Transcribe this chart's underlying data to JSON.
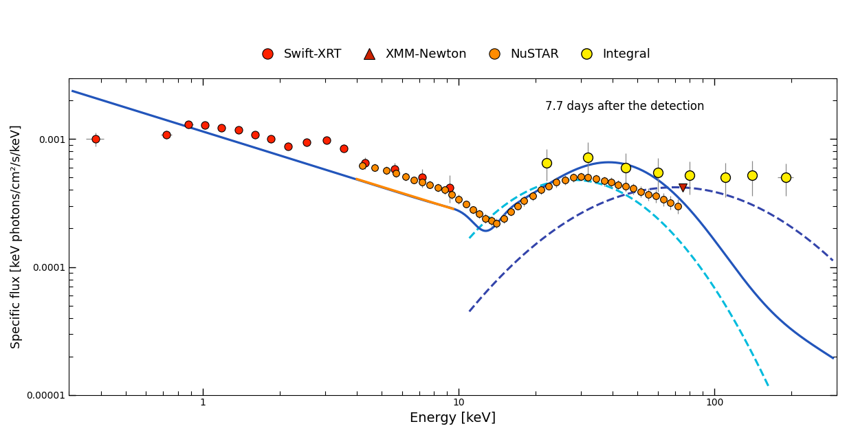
{
  "xlabel": "Energy [keV]",
  "ylabel": "Specific flux [keV photons/cm²/s/keV]",
  "annotation": "7.7 days after the detection",
  "xlim": [
    0.3,
    300
  ],
  "ylim": [
    1e-05,
    0.003
  ],
  "background_color": "#ffffff",
  "solid_line_color": "#2255bb",
  "orange_line_color": "#ff8800",
  "dashed_cyan_color": "#00bbdd",
  "dashed_navy_color": "#3344aa",
  "swift_color": "#ff2200",
  "nustar_color": "#ff8c00",
  "integral_color": "#ffee00",
  "xmm_color": "#cc2200",
  "swift_xrt_data": [
    [
      0.38,
      0.001,
      0.08,
      0.00012
    ],
    [
      0.72,
      0.00108,
      0.05,
      8e-05
    ],
    [
      0.88,
      0.0013,
      0.04,
      9e-05
    ],
    [
      1.02,
      0.00128,
      0.025,
      8e-05
    ],
    [
      1.18,
      0.00122,
      0.025,
      7e-05
    ],
    [
      1.38,
      0.00118,
      0.025,
      7e-05
    ],
    [
      1.6,
      0.00108,
      0.025,
      7e-05
    ],
    [
      1.85,
      0.001,
      0.025,
      7e-05
    ],
    [
      2.15,
      0.00088,
      0.025,
      6e-05
    ],
    [
      2.55,
      0.00094,
      0.025,
      6e-05
    ],
    [
      3.05,
      0.00098,
      0.025,
      6e-05
    ],
    [
      3.55,
      0.00085,
      0.025,
      6e-05
    ],
    [
      4.3,
      0.00065,
      0.025,
      7e-05
    ],
    [
      5.6,
      0.00058,
      0.025,
      7e-05
    ],
    [
      7.2,
      0.0005,
      0.03,
      8e-05
    ],
    [
      9.2,
      0.00042,
      0.04,
      0.0001
    ]
  ],
  "nustar_data": [
    [
      4.2,
      0.00062,
      0.015,
      4e-05
    ],
    [
      4.7,
      0.0006,
      0.015,
      4e-05
    ],
    [
      5.2,
      0.00057,
      0.015,
      4e-05
    ],
    [
      5.7,
      0.00054,
      0.015,
      4e-05
    ],
    [
      6.2,
      0.00051,
      0.015,
      4e-05
    ],
    [
      6.7,
      0.00048,
      0.015,
      3e-05
    ],
    [
      7.2,
      0.00046,
      0.015,
      3e-05
    ],
    [
      7.7,
      0.00044,
      0.015,
      3e-05
    ],
    [
      8.3,
      0.00042,
      0.015,
      3e-05
    ],
    [
      8.8,
      0.0004,
      0.015,
      3e-05
    ],
    [
      9.4,
      0.00037,
      0.015,
      3e-05
    ],
    [
      10.0,
      0.00034,
      0.015,
      3e-05
    ],
    [
      10.7,
      0.00031,
      0.015,
      2e-05
    ],
    [
      11.4,
      0.00028,
      0.015,
      2e-05
    ],
    [
      12.0,
      0.00026,
      0.015,
      2e-05
    ],
    [
      12.7,
      0.00024,
      0.015,
      2e-05
    ],
    [
      13.4,
      0.00023,
      0.015,
      2e-05
    ],
    [
      14.0,
      0.00022,
      0.015,
      2e-05
    ],
    [
      15.0,
      0.00024,
      0.015,
      2e-05
    ],
    [
      16.0,
      0.00027,
      0.015,
      2e-05
    ],
    [
      17.0,
      0.0003,
      0.015,
      2e-05
    ],
    [
      18.0,
      0.00033,
      0.015,
      3e-05
    ],
    [
      19.5,
      0.00036,
      0.015,
      3e-05
    ],
    [
      21.0,
      0.0004,
      0.015,
      3e-05
    ],
    [
      22.5,
      0.00043,
      0.015,
      3e-05
    ],
    [
      24.0,
      0.00046,
      0.015,
      4e-05
    ],
    [
      26.0,
      0.00048,
      0.015,
      4e-05
    ],
    [
      28.0,
      0.0005,
      0.015,
      4e-05
    ],
    [
      30.0,
      0.00051,
      0.015,
      4e-05
    ],
    [
      32.0,
      0.0005,
      0.015,
      4e-05
    ],
    [
      34.5,
      0.00049,
      0.015,
      4e-05
    ],
    [
      37.0,
      0.00047,
      0.015,
      4e-05
    ],
    [
      39.5,
      0.00046,
      0.015,
      4e-05
    ],
    [
      42.0,
      0.00044,
      0.015,
      4e-05
    ],
    [
      45.0,
      0.00043,
      0.015,
      4e-05
    ],
    [
      48.0,
      0.00041,
      0.015,
      4e-05
    ],
    [
      51.5,
      0.00039,
      0.015,
      4e-05
    ],
    [
      55.0,
      0.00037,
      0.015,
      4e-05
    ],
    [
      59.0,
      0.00036,
      0.015,
      4e-05
    ],
    [
      63.0,
      0.00034,
      0.015,
      4e-05
    ],
    [
      67.0,
      0.00032,
      0.015,
      4e-05
    ],
    [
      72.0,
      0.0003,
      0.015,
      4e-05
    ]
  ],
  "integral_data": [
    [
      22.0,
      0.00065,
      0.035,
      0.00018
    ],
    [
      32.0,
      0.00072,
      0.035,
      0.00022
    ],
    [
      45.0,
      0.0006,
      0.035,
      0.00018
    ],
    [
      60.0,
      0.00055,
      0.04,
      0.00016
    ],
    [
      80.0,
      0.00052,
      0.04,
      0.00015
    ],
    [
      110.0,
      0.0005,
      0.04,
      0.00015
    ],
    [
      140.0,
      0.00052,
      0.04,
      0.00016
    ],
    [
      190.0,
      0.0005,
      0.07,
      0.00014
    ]
  ],
  "xmm_e": 75.0,
  "xmm_f": 0.00042
}
